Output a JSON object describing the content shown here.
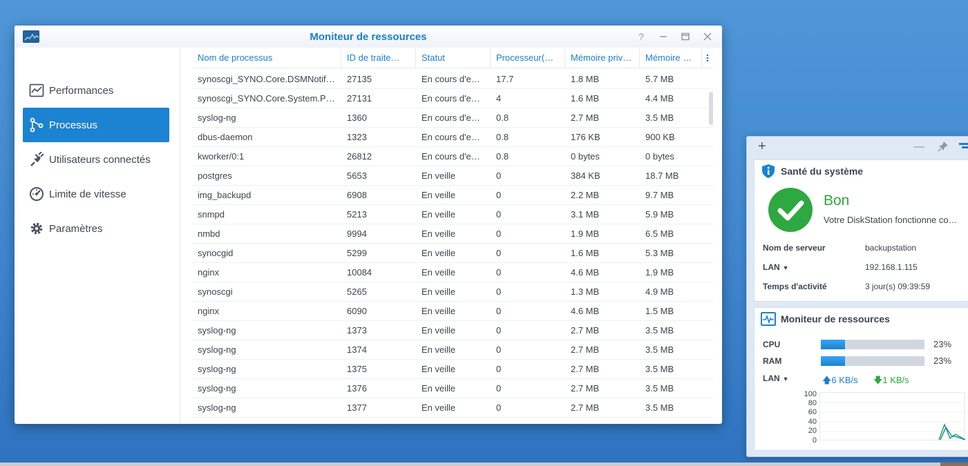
{
  "window": {
    "title": "Moniteur de ressources"
  },
  "sidebar": {
    "items": [
      {
        "label": "Performances",
        "icon": "chart-icon"
      },
      {
        "label": "Processus",
        "icon": "process-icon",
        "active": true
      },
      {
        "label": "Utilisateurs connectés",
        "icon": "plug-icon"
      },
      {
        "label": "Limite de vitesse",
        "icon": "speedometer-icon"
      },
      {
        "label": "Paramètres",
        "icon": "gear-icon"
      }
    ]
  },
  "table": {
    "columns": [
      "Nom de processus",
      "ID de traite…",
      "Statut",
      "Processeur(…",
      "Mémoire priv…",
      "Mémoire …"
    ],
    "rows": [
      [
        "synoscgi_SYNO.Core.DSMNotif…",
        "27135",
        "En cours d'e…",
        "17.7",
        "1.8 MB",
        "5.7 MB"
      ],
      [
        "synoscgi_SYNO.Core.System.P…",
        "27131",
        "En cours d'e…",
        "4",
        "1.6 MB",
        "4.4 MB"
      ],
      [
        "syslog-ng",
        "1360",
        "En cours d'e…",
        "0.8",
        "2.7 MB",
        "3.5 MB"
      ],
      [
        "dbus-daemon",
        "1323",
        "En cours d'e…",
        "0.8",
        "176 KB",
        "900 KB"
      ],
      [
        "kworker/0:1",
        "26812",
        "En cours d'e…",
        "0.8",
        "0 bytes",
        "0 bytes"
      ],
      [
        "postgres",
        "5653",
        "En veille",
        "0",
        "384 KB",
        "18.7 MB"
      ],
      [
        "img_backupd",
        "6908",
        "En veille",
        "0",
        "2.2 MB",
        "9.7 MB"
      ],
      [
        "snmpd",
        "5213",
        "En veille",
        "0",
        "3.1 MB",
        "5.9 MB"
      ],
      [
        "nmbd",
        "9994",
        "En veille",
        "0",
        "1.9 MB",
        "6.5 MB"
      ],
      [
        "synocgid",
        "5299",
        "En veille",
        "0",
        "1.6 MB",
        "5.3 MB"
      ],
      [
        "nginx",
        "10084",
        "En veille",
        "0",
        "4.6 MB",
        "1.9 MB"
      ],
      [
        "synoscgi",
        "5265",
        "En veille",
        "0",
        "1.3 MB",
        "4.9 MB"
      ],
      [
        "nginx",
        "6090",
        "En veille",
        "0",
        "4.6 MB",
        "1.5 MB"
      ],
      [
        "syslog-ng",
        "1373",
        "En veille",
        "0",
        "2.7 MB",
        "3.5 MB"
      ],
      [
        "syslog-ng",
        "1374",
        "En veille",
        "0",
        "2.7 MB",
        "3.5 MB"
      ],
      [
        "syslog-ng",
        "1375",
        "En veille",
        "0",
        "2.7 MB",
        "3.5 MB"
      ],
      [
        "syslog-ng",
        "1376",
        "En veille",
        "0",
        "2.7 MB",
        "3.5 MB"
      ],
      [
        "syslog-ng",
        "1377",
        "En veille",
        "0",
        "2.7 MB",
        "3.5 MB"
      ]
    ]
  },
  "widget_health": {
    "title": "Santé du système",
    "status": "Bon",
    "description": "Votre DiskStation fonctionne co…",
    "server_label": "Nom de serveur",
    "server_value": "backupstation",
    "lan_label": "LAN",
    "lan_value": "192.168.1.115",
    "uptime_label": "Temps d'activité",
    "uptime_value": "3 jour(s) 09:39:59"
  },
  "widget_resources": {
    "title": "Moniteur de ressources",
    "cpu_label": "CPU",
    "cpu_pct": "23%",
    "cpu_value": 23,
    "ram_label": "RAM",
    "ram_pct": "23%",
    "ram_value": 23,
    "lan_label": "LAN",
    "upload": "6 KB/s",
    "download": "1 KB/s",
    "y_ticks": [
      "100",
      "80",
      "60",
      "40",
      "20",
      "0"
    ]
  },
  "colors": {
    "accent": "#1b83d1",
    "ok": "#2ea840"
  }
}
